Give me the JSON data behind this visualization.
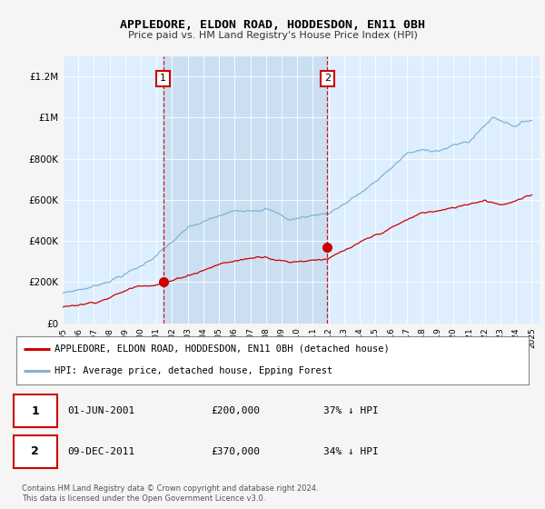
{
  "title": "APPLEDORE, ELDON ROAD, HODDESDON, EN11 0BH",
  "subtitle": "Price paid vs. HM Land Registry's House Price Index (HPI)",
  "background_color": "#f5f5f5",
  "plot_bg_color": "#ddeeff",
  "shade_color": "#c8ddf0",
  "legend_label_red": "APPLEDORE, ELDON ROAD, HODDESDON, EN11 0BH (detached house)",
  "legend_label_blue": "HPI: Average price, detached house, Epping Forest",
  "footnote": "Contains HM Land Registry data © Crown copyright and database right 2024.\nThis data is licensed under the Open Government Licence v3.0.",
  "transaction1_date": "01-JUN-2001",
  "transaction1_price": "£200,000",
  "transaction1_hpi": "37% ↓ HPI",
  "transaction2_date": "09-DEC-2011",
  "transaction2_price": "£370,000",
  "transaction2_hpi": "34% ↓ HPI",
  "xmin": 1995.0,
  "xmax": 2025.5,
  "ymin": 0,
  "ymax": 1300000,
  "yticks": [
    0,
    200000,
    400000,
    600000,
    800000,
    1000000,
    1200000
  ],
  "ytick_labels": [
    "£0",
    "£200K",
    "£400K",
    "£600K",
    "£800K",
    "£1M",
    "£1.2M"
  ],
  "xticks": [
    1995,
    1996,
    1997,
    1998,
    1999,
    2000,
    2001,
    2002,
    2003,
    2004,
    2005,
    2006,
    2007,
    2008,
    2009,
    2010,
    2011,
    2012,
    2013,
    2014,
    2015,
    2016,
    2017,
    2018,
    2019,
    2020,
    2021,
    2022,
    2023,
    2024,
    2025
  ],
  "transaction1_x": 2001.42,
  "transaction1_y": 200000,
  "transaction2_x": 2011.92,
  "transaction2_y": 370000,
  "red_color": "#cc0000",
  "blue_color": "#7fb3d3",
  "vline_color": "#cc0000",
  "dot_color": "#cc0000",
  "box_edge_color": "#cc0000"
}
